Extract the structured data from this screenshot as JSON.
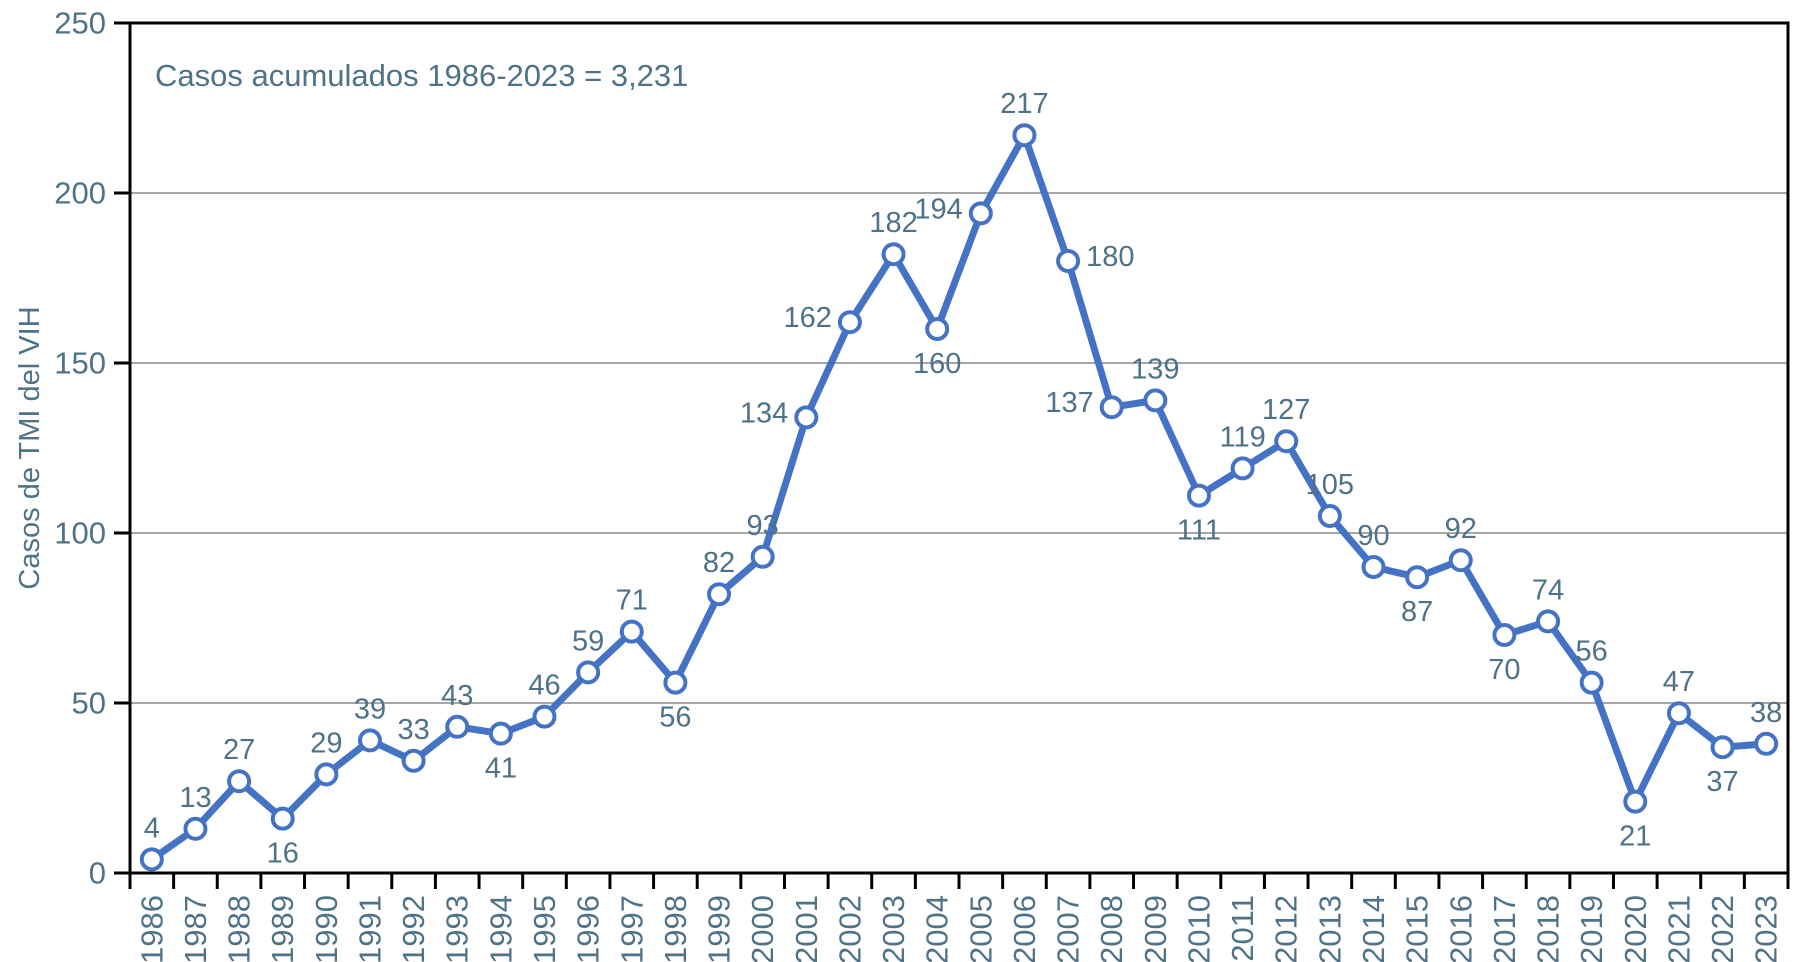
{
  "chart_data": {
    "type": "line",
    "title": "",
    "annotation": "Casos acumulados 1986-2023 = 3,231",
    "ylabel": "Casos de TMI del VIH",
    "xlabel": "",
    "ylim": [
      0,
      250
    ],
    "yticks": [
      0,
      50,
      100,
      150,
      200,
      250
    ],
    "grid": "horizontal-only",
    "legend": "none",
    "categories": [
      "1986",
      "1987",
      "1988",
      "1989",
      "1990",
      "1991",
      "1992",
      "1993",
      "1994",
      "1995",
      "1996",
      "1997",
      "1998",
      "1999",
      "2000",
      "2001",
      "2002",
      "2003",
      "2004",
      "2005",
      "2006",
      "2007",
      "2008",
      "2009",
      "2010",
      "2011",
      "2012",
      "2013",
      "2014",
      "2015",
      "2016",
      "2017",
      "2018",
      "2019",
      "2020",
      "2021",
      "2022",
      "2023"
    ],
    "series": [
      {
        "name": "Casos de TMI del VIH",
        "values": [
          4,
          13,
          27,
          16,
          29,
          39,
          33,
          43,
          41,
          46,
          59,
          71,
          56,
          82,
          93,
          134,
          162,
          182,
          160,
          194,
          217,
          180,
          137,
          139,
          111,
          119,
          127,
          105,
          90,
          87,
          92,
          70,
          74,
          56,
          21,
          47,
          37,
          38
        ],
        "label_positions": [
          "above",
          "above",
          "above",
          "below",
          "above",
          "above",
          "above",
          "above",
          "below",
          "above",
          "above",
          "above",
          "below",
          "above",
          "above",
          "left",
          "left",
          "above",
          "below",
          "left",
          "above",
          "right",
          "left",
          "above",
          "below",
          "above",
          "above",
          "above",
          "above",
          "below",
          "above",
          "below",
          "above",
          "above",
          "below",
          "above",
          "below",
          "above"
        ]
      }
    ],
    "colors": {
      "line": "#4472C4",
      "marker_fill": "#FFFFFF",
      "marker_stroke": "#4472C4",
      "text": "#4E7287",
      "gridline": "#A6A6A6",
      "axis": "#000000",
      "background": "#FFFFFF"
    }
  }
}
